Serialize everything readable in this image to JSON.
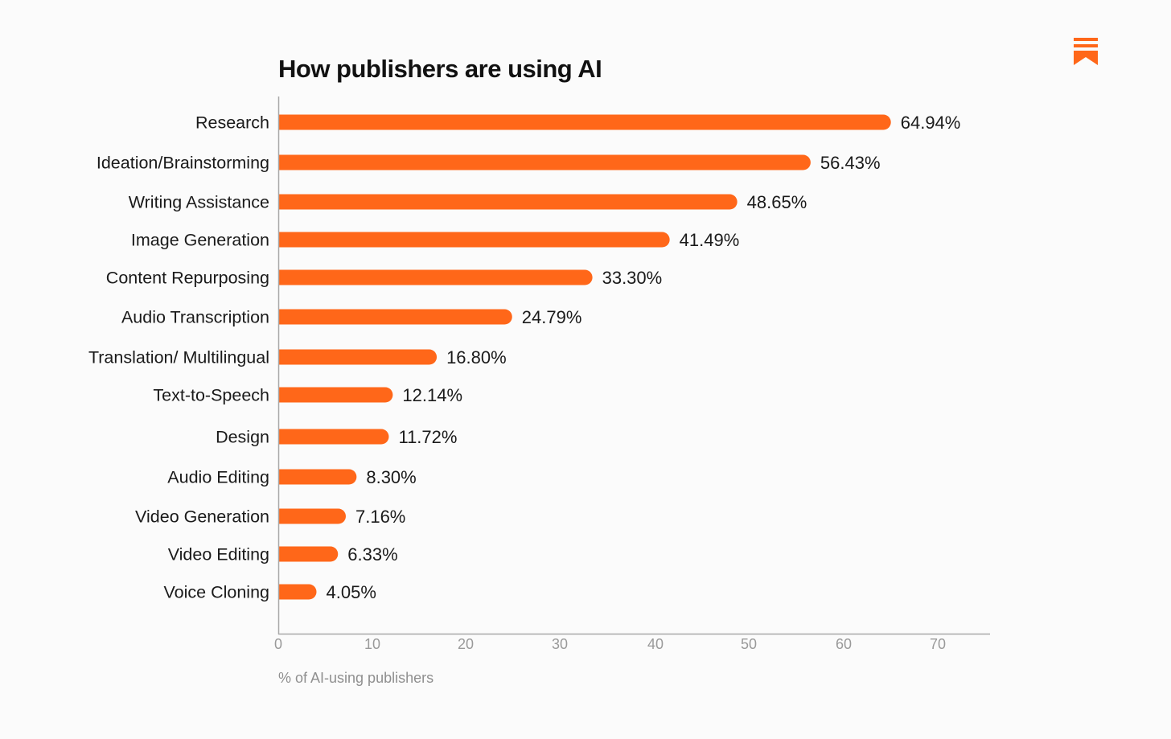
{
  "chart_data": {
    "type": "bar",
    "orientation": "horizontal",
    "title": "How publishers are using AI",
    "xlabel": "% of AI-using publishers",
    "ylabel": "",
    "xlim": [
      0,
      76
    ],
    "ticks": [
      "0",
      "10",
      "20",
      "30",
      "40",
      "50",
      "60",
      "70"
    ],
    "categories": [
      "Research",
      "Ideation/Brainstorming",
      "Writing Assistance",
      "Image Generation",
      "Content Repurposing",
      "Audio Transcription",
      "Translation/ Multilingual",
      "Text-to-Speech",
      "Design",
      "Audio Editing",
      "Video Generation",
      "Video Editing",
      "Voice Cloning"
    ],
    "values": [
      64.94,
      56.43,
      48.65,
      41.49,
      33.3,
      24.79,
      16.8,
      12.14,
      11.72,
      8.3,
      7.16,
      6.33,
      4.05
    ],
    "value_labels": [
      "64.94%",
      "56.43%",
      "48.65%",
      "41.49%",
      "33.30%",
      "24.79%",
      "16.80%",
      "12.14%",
      "11.72%",
      "8.30%",
      "7.16%",
      "6.33%",
      "4.05%"
    ],
    "grid": false,
    "legend": "none",
    "colors": {
      "bar": "#ff6719",
      "axis": "#a8a8a8",
      "background": "#fbfbfb"
    }
  },
  "logo": {
    "icon": "bookmark-logo-icon",
    "color": "#ff6719"
  }
}
